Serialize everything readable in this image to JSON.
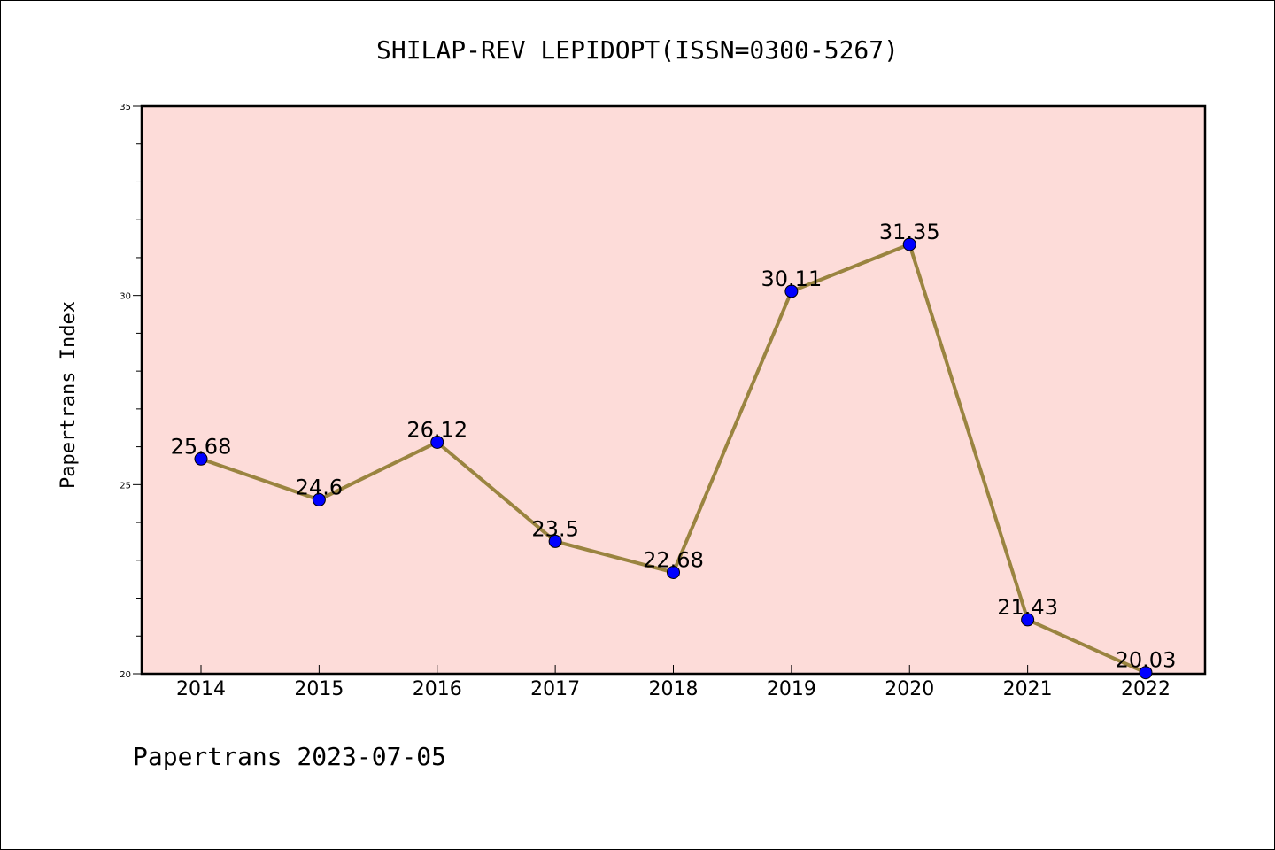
{
  "chart_data": {
    "type": "line",
    "title": "SHILAP-REV LEPIDOPT(ISSN=0300-5267)",
    "ylabel": "Papertrans Index",
    "xlabel": "",
    "categories": [
      "2014",
      "2015",
      "2016",
      "2017",
      "2018",
      "2019",
      "2020",
      "2021",
      "2022"
    ],
    "values": [
      25.68,
      24.6,
      26.12,
      23.5,
      22.68,
      30.11,
      31.35,
      21.43,
      20.03
    ],
    "data_labels": [
      "25.68",
      "24.6",
      "26.12",
      "23.5",
      "22.68",
      "30.11",
      "31.35",
      "21.43",
      "20.03"
    ],
    "ylim": [
      20,
      35
    ],
    "yticks": [
      "20",
      "25",
      "30",
      "35"
    ],
    "grid": false,
    "colors": {
      "plot_background": "#fddcd9",
      "line": "#9a8440",
      "marker": "#0000ff"
    }
  },
  "footer": "Papertrans 2023-07-05"
}
